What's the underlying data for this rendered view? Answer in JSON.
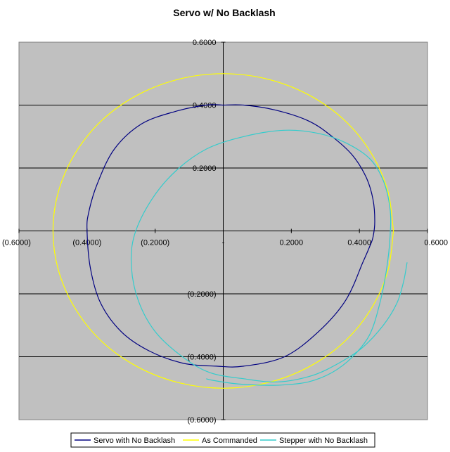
{
  "chart_data": {
    "type": "scatter",
    "title": "Servo w/ No Backlash",
    "xlim": [
      -0.6,
      0.6
    ],
    "ylim": [
      -0.6,
      0.6
    ],
    "x_ticks": [
      {
        "value": -0.6,
        "label": "(0.6000)"
      },
      {
        "value": -0.4,
        "label": "(0.4000)"
      },
      {
        "value": -0.2,
        "label": "(0.2000)"
      },
      {
        "value": 0.0,
        "label": "-"
      },
      {
        "value": 0.2,
        "label": "0.2000"
      },
      {
        "value": 0.4,
        "label": "0.4000"
      },
      {
        "value": 0.6,
        "label": "0.6000"
      }
    ],
    "y_ticks": [
      {
        "value": 0.6,
        "label": "0.6000"
      },
      {
        "value": 0.4,
        "label": "0.4000"
      },
      {
        "value": 0.2,
        "label": "0.2000"
      },
      {
        "value": 0.0,
        "label": "-"
      },
      {
        "value": -0.2,
        "label": "(0.2000)"
      },
      {
        "value": -0.4,
        "label": "(0.4000)"
      },
      {
        "value": -0.6,
        "label": "(0.6000)"
      }
    ],
    "grid": "horizontal",
    "legend_position": "bottom",
    "plot_background": "#C0C0C0",
    "series": [
      {
        "name": "Servo with No Backlash",
        "color": "#000080",
        "x": [
          0.0,
          0.06,
          0.15,
          0.25,
          0.32,
          0.38,
          0.42,
          0.44,
          0.445,
          0.44,
          0.43,
          0.41,
          0.36,
          0.28,
          0.18,
          0.06,
          -0.02,
          -0.12,
          -0.22,
          -0.3,
          -0.36,
          -0.39,
          -0.4,
          -0.395,
          -0.37,
          -0.32,
          -0.24,
          -0.14,
          -0.05,
          0.0
        ],
        "y": [
          0.4,
          0.4,
          0.385,
          0.35,
          0.3,
          0.24,
          0.17,
          0.1,
          0.03,
          -0.02,
          -0.05,
          -0.1,
          -0.22,
          -0.32,
          -0.4,
          -0.43,
          -0.43,
          -0.42,
          -0.38,
          -0.32,
          -0.23,
          -0.12,
          0.0,
          0.06,
          0.15,
          0.26,
          0.34,
          0.38,
          0.4,
          0.4
        ]
      },
      {
        "name": "As Commanded",
        "color": "#FFFF00",
        "x": [
          0.5,
          0.483,
          0.433,
          0.354,
          0.25,
          0.129,
          0.0,
          -0.129,
          -0.25,
          -0.354,
          -0.433,
          -0.483,
          -0.5,
          -0.483,
          -0.433,
          -0.354,
          -0.25,
          -0.129,
          0.0,
          0.129,
          0.25,
          0.354,
          0.433,
          0.483,
          0.5
        ],
        "y": [
          0.0,
          0.129,
          0.25,
          0.354,
          0.433,
          0.483,
          0.5,
          0.483,
          0.433,
          0.354,
          0.25,
          0.129,
          0.0,
          -0.129,
          -0.25,
          -0.354,
          -0.433,
          -0.483,
          -0.5,
          -0.483,
          -0.433,
          -0.354,
          -0.25,
          -0.129,
          0.0
        ]
      },
      {
        "name": "Stepper with No Backlash",
        "color": "#33CCCC",
        "x": [
          -0.05,
          -0.03,
          0.03,
          0.1,
          0.17,
          0.25,
          0.32,
          0.38,
          0.43,
          0.46,
          0.48,
          0.49,
          0.49,
          0.47,
          0.43,
          0.36,
          0.28,
          0.18,
          0.06,
          -0.05,
          -0.14,
          -0.21,
          -0.26,
          -0.27,
          -0.25,
          -0.2,
          -0.12,
          -0.04,
          0.06,
          0.16,
          0.26,
          0.34,
          0.41,
          0.47,
          0.51,
          0.53,
          0.54
        ],
        "y": [
          -0.47,
          -0.475,
          -0.485,
          -0.49,
          -0.49,
          -0.48,
          -0.45,
          -0.4,
          -0.33,
          -0.23,
          -0.12,
          -0.02,
          0.07,
          0.16,
          0.23,
          0.28,
          0.31,
          0.32,
          0.3,
          0.26,
          0.19,
          0.1,
          -0.01,
          -0.11,
          -0.22,
          -0.32,
          -0.4,
          -0.45,
          -0.47,
          -0.48,
          -0.46,
          -0.42,
          -0.37,
          -0.3,
          -0.23,
          -0.16,
          -0.1
        ]
      }
    ]
  }
}
